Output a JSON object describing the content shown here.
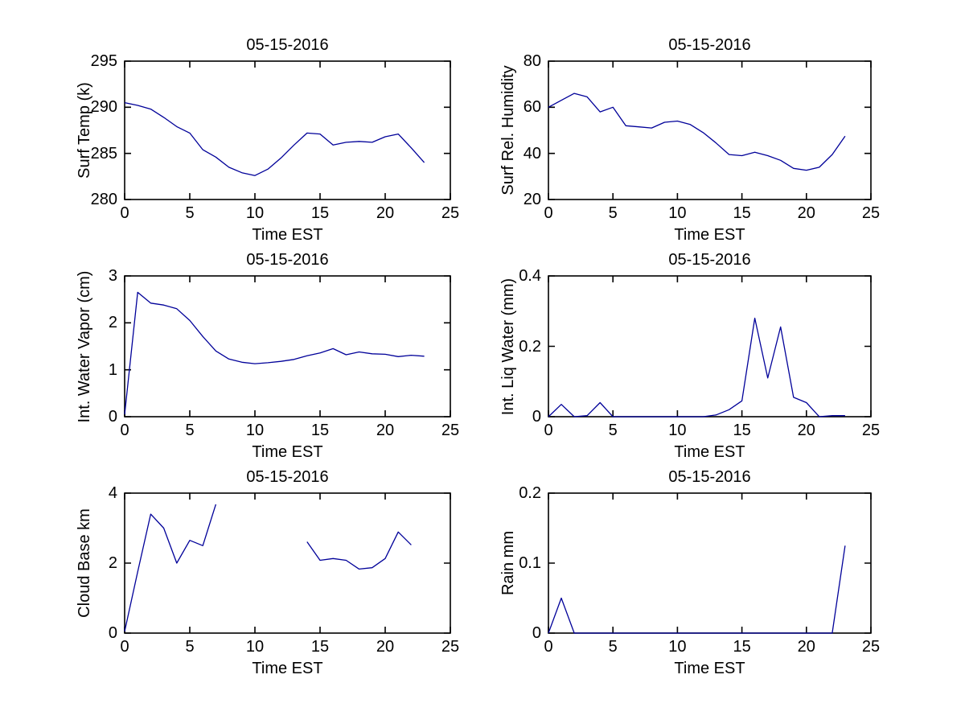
{
  "figure": {
    "background": "#ffffff",
    "line_color": "#000099",
    "axis_color": "#000000",
    "text_color": "#000000",
    "date": "05-15-2016"
  },
  "chart_data": [
    {
      "id": "surf-temp",
      "type": "line",
      "title": "05-15-2016",
      "ylabel": "Surf Temp (k)",
      "xlabel": "Time EST",
      "xlim": [
        0,
        25
      ],
      "ylim": [
        280,
        295
      ],
      "xticks": [
        0,
        5,
        10,
        15,
        20,
        25
      ],
      "yticks": [
        280,
        285,
        290,
        295
      ],
      "grid": false,
      "legend": null,
      "x": [
        0,
        1,
        2,
        3,
        4,
        5,
        6,
        7,
        8,
        9,
        10,
        11,
        12,
        13,
        14,
        15,
        16,
        17,
        18,
        19,
        20,
        21,
        22,
        23
      ],
      "y": [
        290.5,
        290.2,
        289.8,
        288.9,
        287.9,
        287.2,
        285.4,
        284.6,
        283.5,
        282.9,
        282.6,
        283.3,
        284.5,
        285.9,
        287.2,
        287.1,
        285.9,
        286.2,
        286.3,
        286.2,
        286.8,
        287.1,
        285.6,
        284.0
      ]
    },
    {
      "id": "surf-rel-humidity",
      "type": "line",
      "title": "05-15-2016",
      "ylabel": "Surf Rel. Humidity",
      "xlabel": "Time EST",
      "xlim": [
        0,
        25
      ],
      "ylim": [
        20,
        80
      ],
      "xticks": [
        0,
        5,
        10,
        15,
        20,
        25
      ],
      "yticks": [
        20,
        40,
        60,
        80
      ],
      "grid": false,
      "legend": null,
      "x": [
        0,
        1,
        2,
        3,
        4,
        5,
        6,
        7,
        8,
        9,
        10,
        11,
        12,
        13,
        14,
        15,
        16,
        17,
        18,
        19,
        20,
        21,
        22,
        23
      ],
      "y": [
        60,
        63,
        66,
        64.5,
        58,
        60,
        52,
        51.5,
        51,
        53.5,
        54,
        52.5,
        49,
        44.5,
        39.5,
        39,
        40.5,
        39,
        37,
        33.5,
        32.7,
        34,
        39.5,
        47.5
      ]
    },
    {
      "id": "int-water-vapor",
      "type": "line",
      "title": "05-15-2016",
      "ylabel": "Int. Water Vapor (cm)",
      "xlabel": "Time EST",
      "xlim": [
        0,
        25
      ],
      "ylim": [
        0,
        3
      ],
      "xticks": [
        0,
        5,
        10,
        15,
        20,
        25
      ],
      "yticks": [
        0,
        1,
        2,
        3
      ],
      "grid": false,
      "legend": null,
      "x": [
        0,
        1,
        2,
        3,
        4,
        5,
        6,
        7,
        8,
        9,
        10,
        11,
        12,
        13,
        14,
        15,
        16,
        17,
        18,
        19,
        20,
        21,
        22,
        23
      ],
      "y": [
        0.05,
        2.65,
        2.42,
        2.38,
        2.3,
        2.05,
        1.71,
        1.4,
        1.23,
        1.16,
        1.13,
        1.15,
        1.18,
        1.22,
        1.3,
        1.36,
        1.45,
        1.32,
        1.38,
        1.34,
        1.33,
        1.28,
        1.31,
        1.29
      ]
    },
    {
      "id": "int-liq-water",
      "type": "line",
      "title": "05-15-2016",
      "ylabel": "Int. Liq Water (mm)",
      "xlabel": "Time EST",
      "xlim": [
        0,
        25
      ],
      "ylim": [
        0,
        0.4
      ],
      "xticks": [
        0,
        5,
        10,
        15,
        20,
        25
      ],
      "yticks": [
        0,
        0.2,
        0.4
      ],
      "grid": false,
      "legend": null,
      "x": [
        0,
        1,
        2,
        3,
        4,
        5,
        6,
        7,
        8,
        9,
        10,
        11,
        12,
        13,
        14,
        15,
        16,
        17,
        18,
        19,
        20,
        21,
        22,
        23
      ],
      "y": [
        0,
        0.035,
        0,
        0.003,
        0.04,
        0,
        0,
        0,
        0,
        0,
        0,
        0,
        0,
        0.005,
        0.02,
        0.045,
        0.28,
        0.11,
        0.255,
        0.055,
        0.04,
        0,
        0.003,
        0.003
      ]
    },
    {
      "id": "cloud-base",
      "type": "line",
      "title": "05-15-2016",
      "ylabel": "Cloud Base km",
      "xlabel": "Time EST",
      "xlim": [
        0,
        25
      ],
      "ylim": [
        0,
        4
      ],
      "xticks": [
        0,
        5,
        10,
        15,
        20,
        25
      ],
      "yticks": [
        0,
        2,
        4
      ],
      "grid": false,
      "legend": null,
      "x": [
        0,
        1,
        2,
        3,
        4,
        5,
        6,
        7,
        8,
        9,
        10,
        11,
        12,
        13,
        14,
        15,
        16,
        17,
        18,
        19,
        20,
        21,
        22,
        23
      ],
      "y": [
        0.05,
        1.75,
        3.4,
        3.0,
        2.0,
        2.65,
        2.5,
        3.68,
        null,
        null,
        null,
        null,
        null,
        null,
        2.61,
        2.08,
        2.13,
        2.08,
        1.83,
        1.87,
        2.13,
        2.89,
        2.52,
        null
      ]
    },
    {
      "id": "rain",
      "type": "line",
      "title": "05-15-2016",
      "ylabel": "Rain mm",
      "xlabel": "Time EST",
      "xlim": [
        0,
        25
      ],
      "ylim": [
        0,
        0.2
      ],
      "xticks": [
        0,
        5,
        10,
        15,
        20,
        25
      ],
      "yticks": [
        0,
        0.1,
        0.2
      ],
      "grid": false,
      "legend": null,
      "x": [
        0,
        1,
        2,
        3,
        4,
        5,
        6,
        7,
        8,
        9,
        10,
        11,
        12,
        13,
        14,
        15,
        16,
        17,
        18,
        19,
        20,
        21,
        22,
        23
      ],
      "y": [
        0,
        0.05,
        0,
        0,
        0,
        0,
        0,
        0,
        0,
        0,
        0,
        0,
        0,
        0,
        0,
        0,
        0,
        0,
        0,
        0,
        0,
        0,
        0,
        0.125
      ]
    }
  ]
}
